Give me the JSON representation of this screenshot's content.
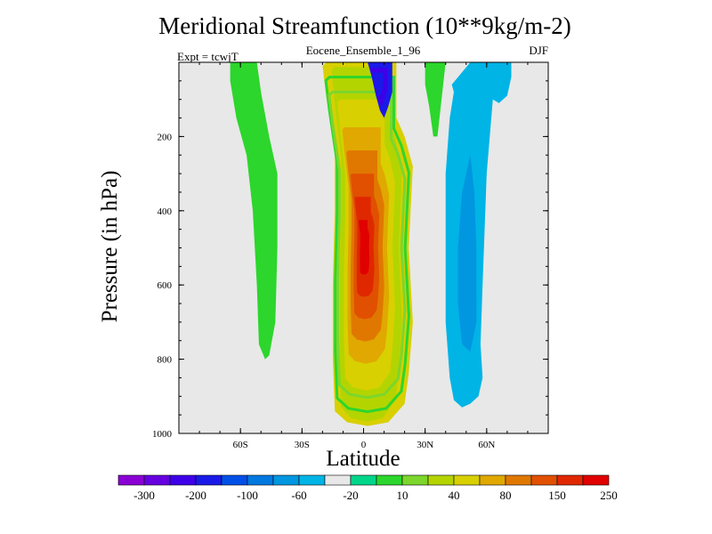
{
  "chart_data": {
    "type": "heatmap",
    "subtype": "filled-contour",
    "title": "Meridional Streamfunction (10**9kg/m-2)",
    "subtitle": "Eocene_Ensemble_1_96",
    "left_label": "Expt = tcwjT",
    "right_label": "DJF",
    "xlabel": "Latitude",
    "ylabel": "Pressure (in hPa)",
    "xlim": [
      -90,
      90
    ],
    "ylim": [
      0,
      1000
    ],
    "y_reversed": true,
    "x_ticks": [
      {
        "value": -60,
        "label": "60S"
      },
      {
        "value": -30,
        "label": "30S"
      },
      {
        "value": 0,
        "label": "0"
      },
      {
        "value": 30,
        "label": "30N"
      },
      {
        "value": 60,
        "label": "60N"
      }
    ],
    "y_ticks": [
      {
        "value": 200,
        "label": "200"
      },
      {
        "value": 400,
        "label": "400"
      },
      {
        "value": 600,
        "label": "600"
      },
      {
        "value": 800,
        "label": "800"
      },
      {
        "value": 1000,
        "label": "1000"
      }
    ],
    "background_color": "#e8e8e8",
    "contour_regions": [
      {
        "name": "tropical-hadley-cell",
        "level_index": 13,
        "center_lat": 0,
        "center_p": 500,
        "max_value": "above 250",
        "outline": [
          [
            -18,
            0
          ],
          [
            -6,
            0
          ],
          [
            -2,
            0
          ],
          [
            8,
            0
          ],
          [
            16,
            0
          ],
          [
            16,
            150
          ],
          [
            20,
            200
          ],
          [
            24,
            280
          ],
          [
            22,
            500
          ],
          [
            24,
            700
          ],
          [
            22,
            840
          ],
          [
            20,
            920
          ],
          [
            12,
            970
          ],
          [
            2,
            980
          ],
          [
            -8,
            970
          ],
          [
            -14,
            940
          ],
          [
            -15,
            800
          ],
          [
            -15,
            600
          ],
          [
            -14,
            400
          ],
          [
            -14,
            250
          ],
          [
            -18,
            100
          ],
          [
            -20,
            10
          ]
        ]
      },
      {
        "name": "southern-subtropical-positive-band",
        "level_index": 10,
        "center_lat": -52,
        "center_p": 300,
        "max_value": "10-40",
        "outline": [
          [
            -65,
            0
          ],
          [
            -52,
            0
          ],
          [
            -50,
            80
          ],
          [
            -46,
            200
          ],
          [
            -42,
            300
          ],
          [
            -42,
            500
          ],
          [
            -43,
            700
          ],
          [
            -46,
            790
          ],
          [
            -48,
            800
          ],
          [
            -51,
            760
          ],
          [
            -52,
            600
          ],
          [
            -54,
            400
          ],
          [
            -57,
            250
          ],
          [
            -62,
            150
          ],
          [
            -65,
            50
          ]
        ]
      },
      {
        "name": "north-polar-positive-band",
        "level_index": 10,
        "center_lat": 35,
        "center_p": 40,
        "max_value": "10-40",
        "outline": [
          [
            30,
            0
          ],
          [
            40,
            0
          ],
          [
            38,
            100
          ],
          [
            36,
            200
          ],
          [
            34,
            200
          ],
          [
            32,
            120
          ],
          [
            30,
            60
          ]
        ]
      },
      {
        "name": "southern-ferrel-negative",
        "level_index": 8,
        "center_lat": -39,
        "center_p": 100,
        "max_value": "-20 to 10",
        "outline": [
          [
            -45,
            0
          ],
          [
            -34,
            0
          ],
          [
            -35,
            80
          ],
          [
            -37,
            200
          ],
          [
            -39,
            240
          ],
          [
            -41,
            160
          ],
          [
            -43,
            80
          ]
        ]
      },
      {
        "name": "southern-midlat-negative-band",
        "level_index": 8,
        "center_lat": -28,
        "center_p": 550,
        "max_value": "-20 to 10",
        "outline": [
          [
            -31,
            300
          ],
          [
            -26,
            300
          ],
          [
            -25,
            500
          ],
          [
            -25,
            700
          ],
          [
            -27,
            760
          ],
          [
            -30,
            720
          ],
          [
            -31,
            500
          ]
        ]
      },
      {
        "name": "northern-ferrel-negative",
        "level_index": 7,
        "center_lat": 50,
        "center_p": 500,
        "max_value": "-60",
        "outline": [
          [
            43,
            60
          ],
          [
            52,
            0
          ],
          [
            62,
            0
          ],
          [
            70,
            0
          ],
          [
            72,
            0
          ],
          [
            72,
            40
          ],
          [
            70,
            90
          ],
          [
            66,
            110
          ],
          [
            63,
            100
          ],
          [
            60,
            300
          ],
          [
            58,
            600
          ],
          [
            57,
            760
          ],
          [
            58,
            850
          ],
          [
            56,
            900
          ],
          [
            52,
            920
          ],
          [
            48,
            930
          ],
          [
            44,
            910
          ],
          [
            42,
            850
          ],
          [
            40,
            700
          ],
          [
            40,
            500
          ],
          [
            40,
            300
          ],
          [
            42,
            150
          ],
          [
            44,
            80
          ]
        ]
      },
      {
        "name": "northern-ferrel-core",
        "level_index": 6,
        "center_lat": 50,
        "center_p": 550,
        "max_value": "-60 to -20",
        "outline": [
          [
            48,
            350
          ],
          [
            52,
            250
          ],
          [
            54,
            350
          ],
          [
            55,
            500
          ],
          [
            55,
            700
          ],
          [
            52,
            780
          ],
          [
            48,
            760
          ],
          [
            46,
            650
          ],
          [
            46,
            500
          ]
        ]
      },
      {
        "name": "upper-tropical-negative-cell",
        "level_index": 3,
        "center_lat": 6,
        "center_p": 50,
        "max_value": "-100",
        "outline": [
          [
            2,
            0
          ],
          [
            14,
            0
          ],
          [
            14,
            80
          ],
          [
            12,
            120
          ],
          [
            10,
            150
          ],
          [
            8,
            130
          ],
          [
            6,
            90
          ],
          [
            4,
            40
          ]
        ]
      }
    ],
    "colorbar": {
      "labels": [
        "-300",
        "-200",
        "-100",
        "-60",
        "-20",
        "10",
        "40",
        "80",
        "150",
        "250"
      ],
      "colors": [
        "#8a00d4",
        "#6600e0",
        "#3d00e8",
        "#1a1ae8",
        "#0050e8",
        "#0078e0",
        "#0096e0",
        "#00b4e6",
        "#e8e8e8",
        "#00d68a",
        "#2cd62c",
        "#7cd62c",
        "#b4d400",
        "#d8d000",
        "#e0a800",
        "#e07800",
        "#e05000",
        "#e02800",
        "#e00000"
      ]
    }
  }
}
